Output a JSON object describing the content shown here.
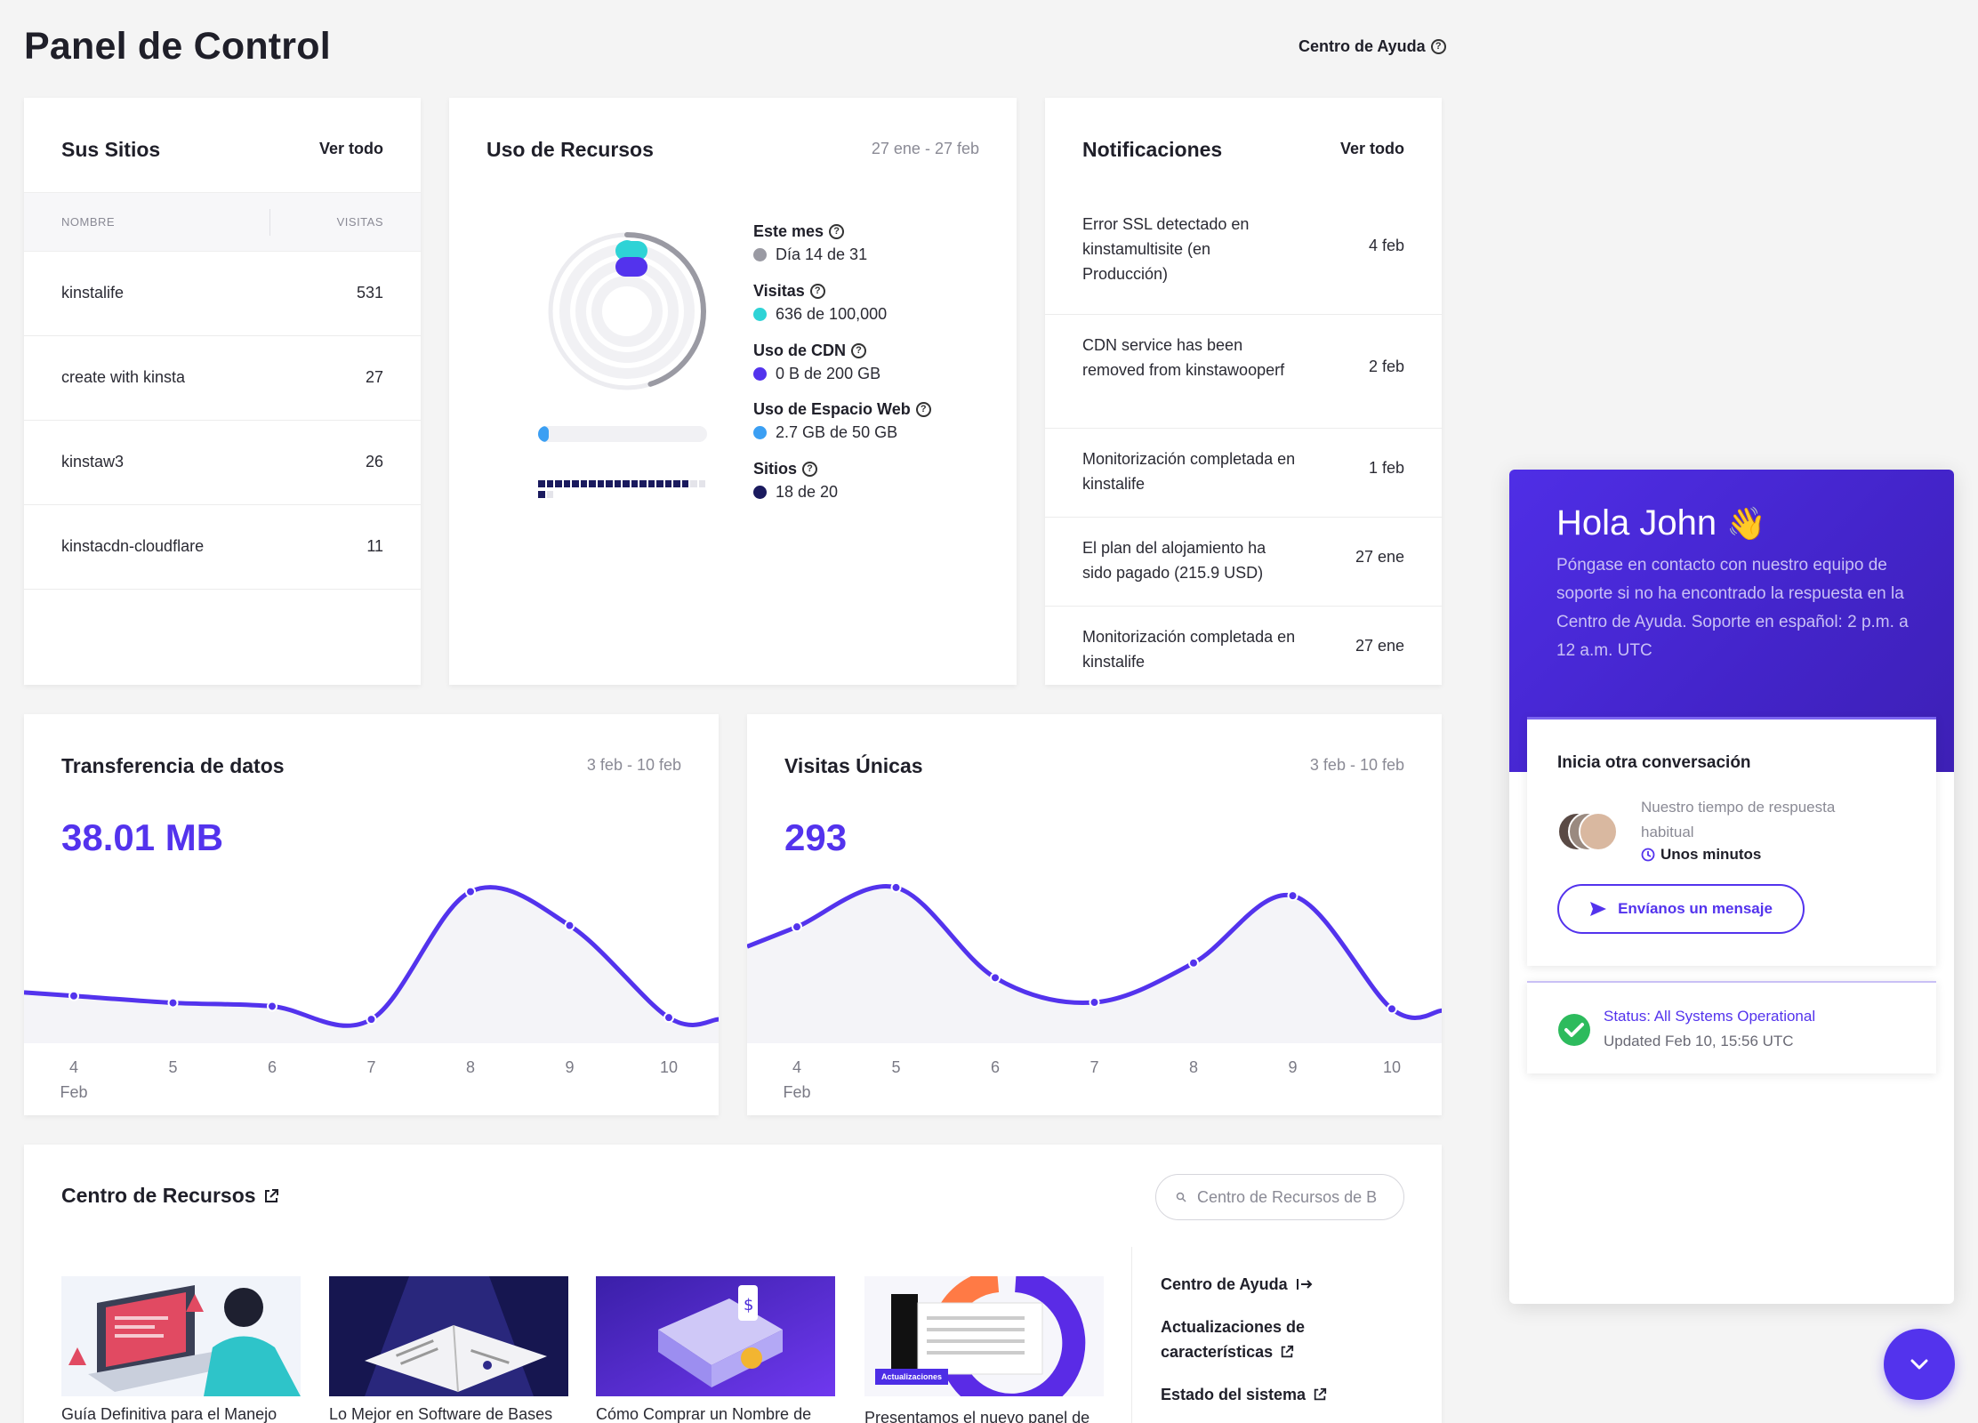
{
  "header": {
    "title": "Panel de Control",
    "help_link": "Centro de Ayuda"
  },
  "sites": {
    "title": "Sus Sitios",
    "view_all": "Ver todo",
    "col_name": "NOMBRE",
    "col_visits": "VISITAS",
    "rows": [
      {
        "name": "kinstalife",
        "visits": "531"
      },
      {
        "name": "create with kinsta",
        "visits": "27"
      },
      {
        "name": "kinstaw3",
        "visits": "26"
      },
      {
        "name": "kinstacdn-cloudflare",
        "visits": "11"
      }
    ]
  },
  "resources": {
    "title": "Uso de Recursos",
    "date_range": "27 ene - 27 feb",
    "month_label": "Este mes",
    "month_value": "Día 14 de 31",
    "visits_label": "Visitas",
    "visits_value": "636 de 100,000",
    "cdn_label": "Uso de CDN",
    "cdn_value": "0 B de 200 GB",
    "disk_label": "Uso de Espacio Web",
    "disk_value": "2.7 GB de 50 GB",
    "sites_label": "Sitios",
    "sites_value": "18 de 20",
    "month_progress": 0.45,
    "visits_progress": 0.0064,
    "disk_progress": 0.054,
    "sites_used": 18,
    "sites_total": 20,
    "colors": {
      "month": "#9a9aa3",
      "visits": "#2ed3d6",
      "cdn": "#5333ed",
      "disk": "#3b9ff3",
      "sites": "#1a1a5e"
    }
  },
  "notifications": {
    "title": "Notificaciones",
    "view_all": "Ver todo",
    "items": [
      {
        "text": "Error SSL detectado en kinstamultisite (en Producción)",
        "date": "4 feb"
      },
      {
        "text": "CDN service has been removed from kinstawooperf",
        "date": "2 feb"
      },
      {
        "text": "Monitorización completada en kinstalife",
        "date": "1 feb"
      },
      {
        "text": "El plan del alojamiento ha sido pagado (215.9 USD)",
        "date": "27 ene"
      },
      {
        "text": "Monitorización completada en kinstalife",
        "date": "27 ene"
      }
    ]
  },
  "transfer": {
    "title": "Transferencia de datos",
    "date_range": "3 feb - 10 feb",
    "total": "38.01 MB"
  },
  "unique_visits": {
    "title": "Visitas Únicas",
    "date_range": "3 feb - 10 feb",
    "total": "293"
  },
  "chart_data": [
    {
      "type": "area",
      "title": "Transferencia de datos",
      "x": [
        "4",
        "5",
        "6",
        "7",
        "8",
        "9",
        "10"
      ],
      "x_sublabel": "Feb",
      "values": [
        3.2,
        2.4,
        2.0,
        0.5,
        15.2,
        11.3,
        0.7
      ],
      "ylim": [
        0,
        17
      ]
    },
    {
      "type": "area",
      "title": "Visitas Únicas",
      "x": [
        "4",
        "5",
        "6",
        "7",
        "8",
        "9",
        "10"
      ],
      "x_sublabel": "Feb",
      "values": [
        59,
        83,
        28,
        13,
        37,
        78,
        9
      ],
      "ylim": [
        0,
        90
      ]
    }
  ],
  "resource_center": {
    "title": "Centro de Recursos",
    "search_placeholder": "Centro de Recursos de B",
    "articles": [
      {
        "caption": "Guía Definitiva para el Manejo"
      },
      {
        "caption": "Lo Mejor en Software de Bases"
      },
      {
        "caption": "Cómo Comprar un Nombre de"
      },
      {
        "caption": "Presentamos el nuevo panel de",
        "badge": "Actualizaciones"
      }
    ],
    "links": {
      "help_center": "Centro de Ayuda",
      "updates_line1": "Actualizaciones de",
      "updates_line2": "características",
      "system_status": "Estado del sistema"
    }
  },
  "chat": {
    "greeting": "Hola John",
    "subtitle": "Póngase en contacto con nuestro equipo de soporte si no ha encontrado la respuesta en la Centro de Ayuda. Soporte en español: 2 p.m. a 12 a.m. UTC",
    "conversation_title": "Inicia otra conversación",
    "response_label": "Nuestro tiempo de respuesta habitual",
    "response_value": "Unos minutos",
    "send_button": "Envíanos un mensaje",
    "status_title": "Status: All Systems Operational",
    "status_updated": "Updated Feb 10, 15:56 UTC"
  }
}
